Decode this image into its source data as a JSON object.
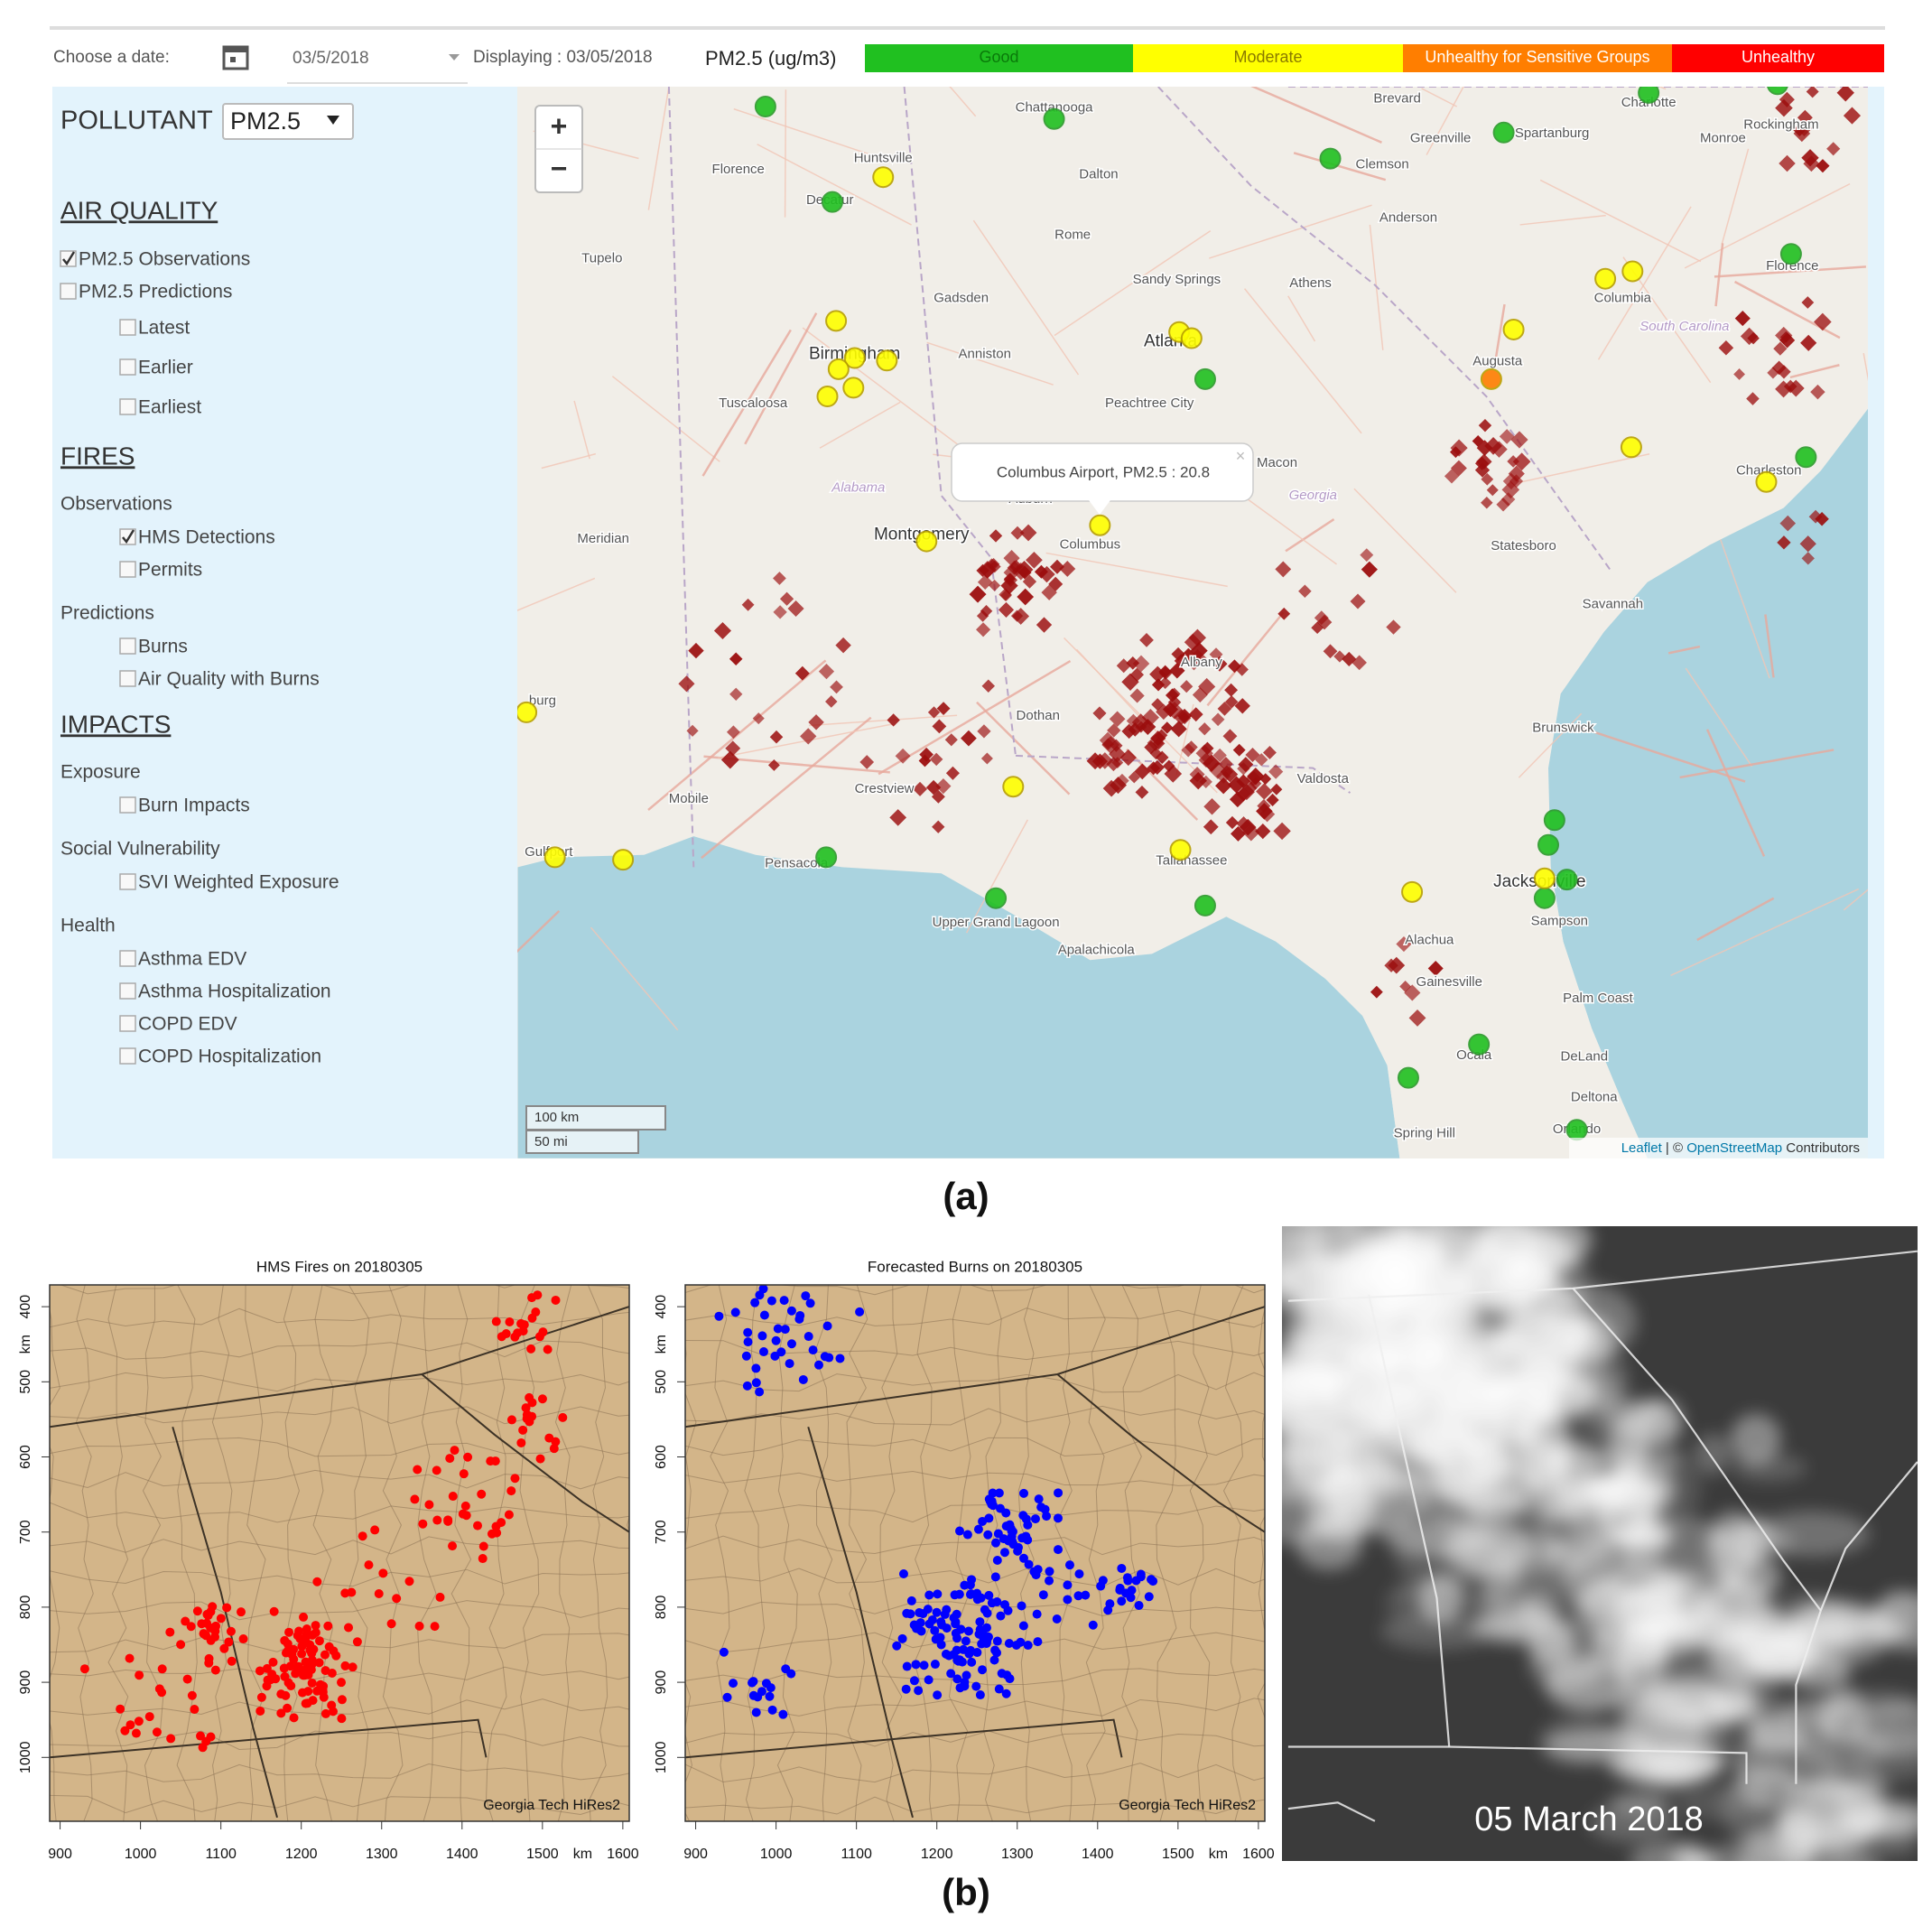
{
  "header": {
    "date_label": "Choose a date:",
    "date_value": "03/5/2018",
    "displaying": "Displaying : 03/05/2018",
    "pollutant_unit": "PM2.5 (ug/m3)",
    "scale": [
      {
        "label": "Good",
        "color": "#20c020"
      },
      {
        "label": "Moderate",
        "color": "#ffff00"
      },
      {
        "label": "Unhealthy for Sensitive Groups",
        "color": "#ff7e00"
      },
      {
        "label": "Unhealthy",
        "color": "#ff0000"
      }
    ]
  },
  "sidebar": {
    "pollutant_label": "POLLUTANT",
    "pollutant_value": "PM2.5",
    "sections": [
      {
        "title": "AIR QUALITY",
        "items": [
          {
            "text": "PM2.5 Observations",
            "checked": true
          },
          {
            "text": "PM2.5 Predictions",
            "checked": false,
            "children": [
              {
                "text": "Latest",
                "checked": false
              },
              {
                "text": "Earlier",
                "checked": false
              },
              {
                "text": "Earliest",
                "checked": false
              }
            ]
          }
        ]
      },
      {
        "title": "FIRES",
        "groups": [
          {
            "label": "Observations",
            "items": [
              {
                "text": "HMS Detections",
                "checked": true
              },
              {
                "text": "Permits",
                "checked": false
              }
            ]
          },
          {
            "label": "Predictions",
            "items": [
              {
                "text": "Burns",
                "checked": false
              },
              {
                "text": "Air Quality with Burns",
                "checked": false
              }
            ]
          }
        ]
      },
      {
        "title": "IMPACTS",
        "groups": [
          {
            "label": "Exposure",
            "items": [
              {
                "text": "Burn Impacts",
                "checked": false
              }
            ]
          },
          {
            "label": "Social Vulnerability",
            "items": [
              {
                "text": "SVI Weighted Exposure",
                "checked": false
              }
            ]
          },
          {
            "label": "Health",
            "items": [
              {
                "text": "Asthma EDV",
                "checked": false
              },
              {
                "text": "Asthma Hospitalization",
                "checked": false
              },
              {
                "text": "COPD EDV",
                "checked": false
              },
              {
                "text": "COPD Hospitalization",
                "checked": false
              }
            ]
          }
        ]
      }
    ]
  },
  "map": {
    "zoom_in": "+",
    "zoom_out": "−",
    "popup": "Columbus Airport, PM2.5 : 20.8",
    "popup_close": "×",
    "scale_bar": [
      "100 km",
      "50 mi"
    ],
    "attribution": {
      "leaflet": "Leaflet",
      "separator": " | © ",
      "osm": "OpenStreetMap",
      "rest": " Contributors"
    },
    "labels": [
      "Chattanooga",
      "Huntsville",
      "Florence",
      "Decatur",
      "Dalton",
      "Rome",
      "Tupelo",
      "Gadsden",
      "Sandy Springs",
      "Athens",
      "Anniston",
      "Atlanta",
      "Birmingham",
      "Tuscaloosa",
      "Peachtree City",
      "Macon",
      "Georgia",
      "Alabama",
      "Auburn",
      "Montgomery",
      "Columbus",
      "Meridian",
      "burg",
      "Dothan",
      "Albany",
      "Valdosta",
      "Mobile",
      "Crestview",
      "Pensacola",
      "Gulfport",
      "Tallahassee",
      "Upper Grand Lagoon",
      "Apalachicola",
      "Brevard",
      "Greenville",
      "Spartanburg",
      "Charlotte",
      "Monroe",
      "Rockingham",
      "Clemson",
      "Anderson",
      "Columbia",
      "South Carolina",
      "Augusta",
      "Florence",
      "Charleston",
      "Statesboro",
      "Savannah",
      "Brunswick",
      "Jacksonville",
      "Sampson",
      "Alachua",
      "Gainesville",
      "Palm Coast",
      "DeLand",
      "Deltona",
      "Orlando",
      "Ocala",
      "Spring Hill"
    ]
  },
  "caption_a": "(a)",
  "panels": [
    {
      "title": "HMS Fires on 20180305",
      "dot_color": "#ff0000",
      "xlabel": "km",
      "ylabel": "km",
      "xlim": [
        887,
        1608
      ],
      "ylim": [
        1085,
        371
      ],
      "xticks": [
        900,
        1000,
        1100,
        1200,
        1300,
        1400,
        1500,
        1600
      ],
      "yticks": [
        400,
        500,
        600,
        700,
        800,
        900,
        1000
      ],
      "note": "Georgia Tech HiRes2"
    },
    {
      "title": "Forecasted Burns on 20180305",
      "dot_color": "#0000ff",
      "xlabel": "km",
      "ylabel": "km",
      "xlim": [
        887,
        1608
      ],
      "ylim": [
        1085,
        371
      ],
      "xticks": [
        900,
        1000,
        1100,
        1200,
        1300,
        1400,
        1500,
        1600
      ],
      "yticks": [
        400,
        500,
        600,
        700,
        800,
        900,
        1000
      ],
      "note": "Georgia Tech HiRes2"
    }
  ],
  "satellite_label": "05 March 2018",
  "caption_b": "(b)"
}
